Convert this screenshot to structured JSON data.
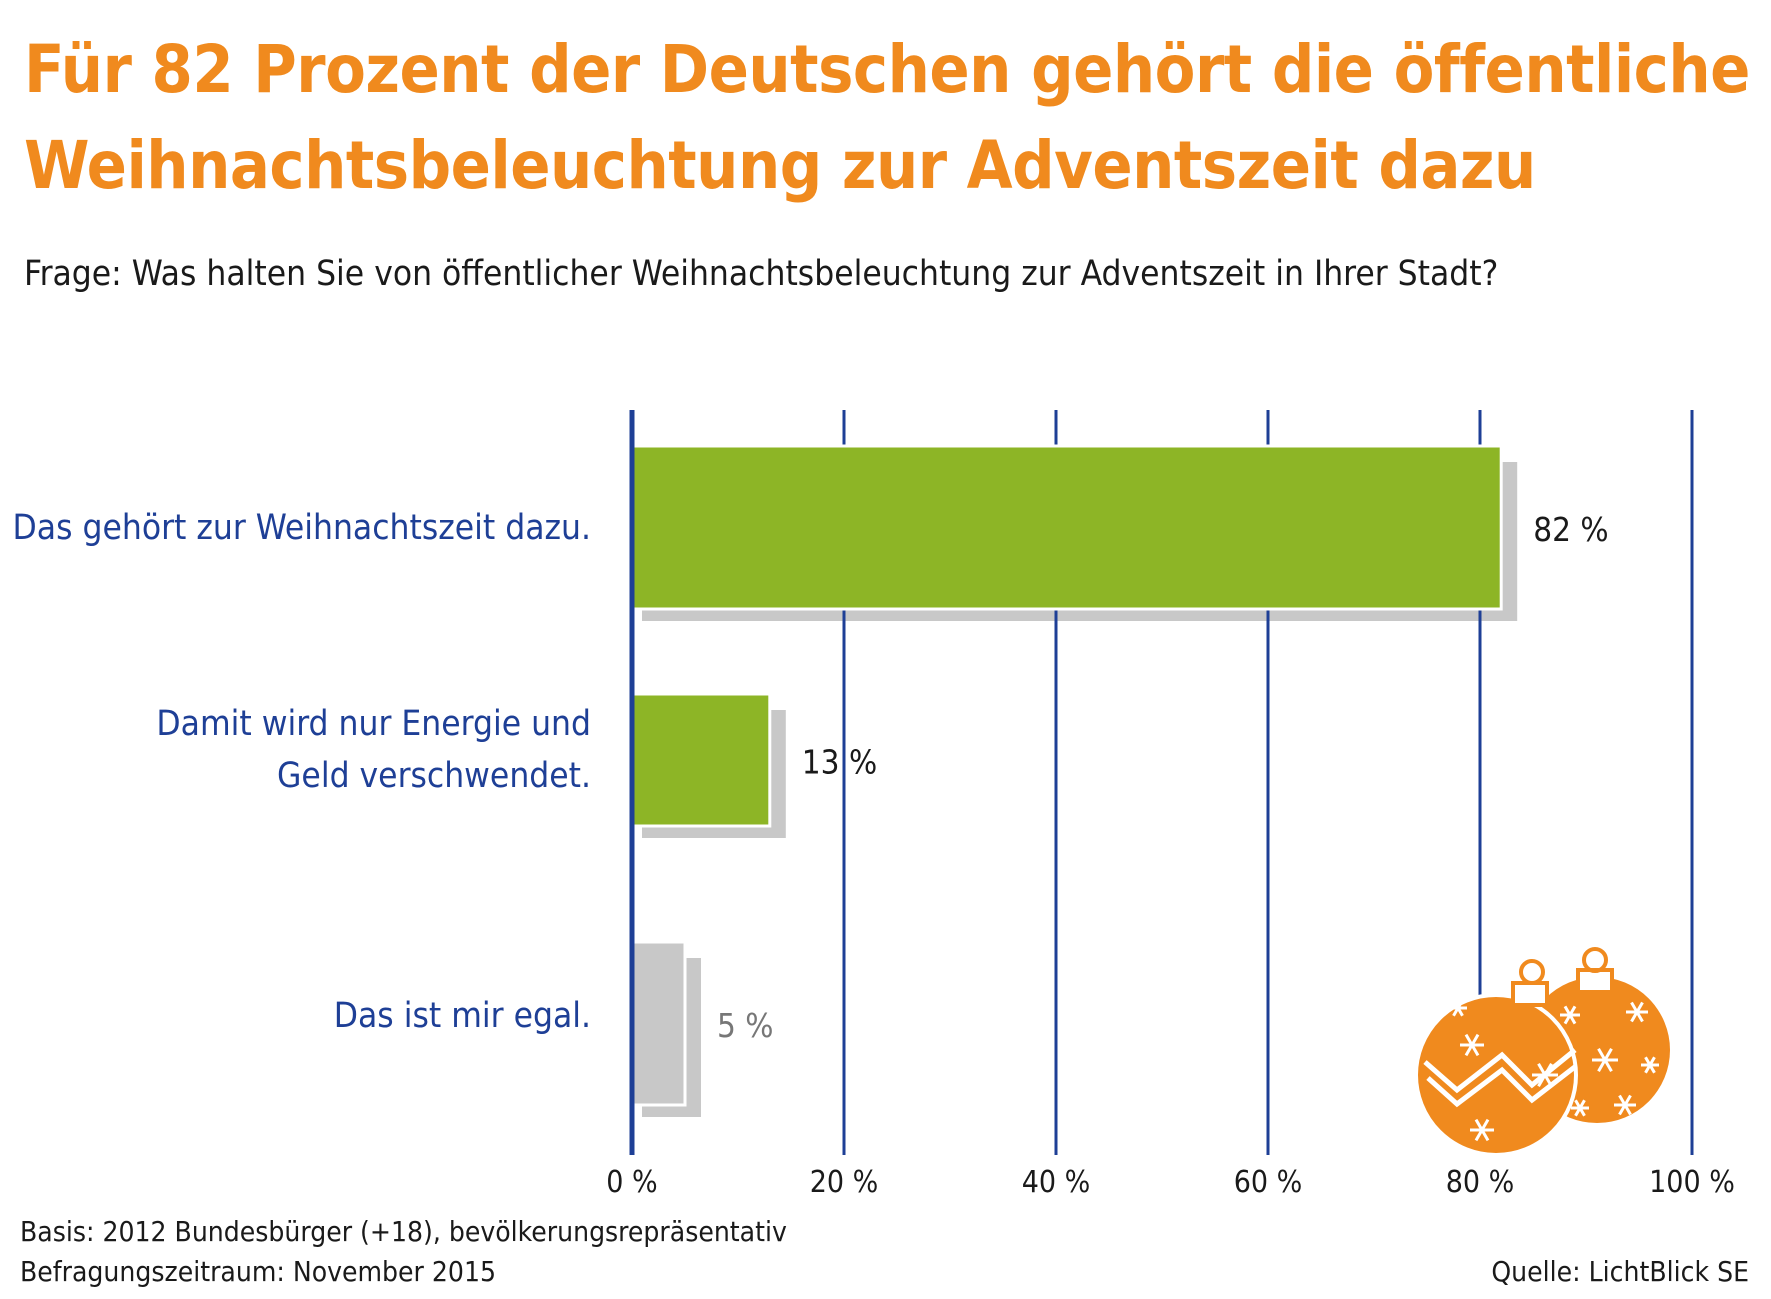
{
  "title_line1": "Für 82 Prozent der Deutschen gehört die öffentliche",
  "title_line2": "Weihnachtsbeleuchtung zur Adventszeit dazu",
  "question": "Frage: Was halten Sie von öffentlicher Weihnachtsbeleuchtung zur Adventszeit in Ihrer Stadt?",
  "footnote": {
    "basis": "Basis: 2012 Bundesbürger (+18), bevölkerungsrepräsentativ",
    "period": "Befragungszeitraum: November 2015",
    "source": "Quelle: LichtBlick SE"
  },
  "colors": {
    "title": "#F08A1E",
    "label": "#1E3F96",
    "axis": "#1E3F96",
    "bar_green": "#8DB526",
    "bar_gray": "#C8C8C8",
    "shadow": "#C8C8C8",
    "ornament": "#F08A1E"
  },
  "decoration": "christmas-ornaments-icon",
  "chart_data": {
    "type": "bar",
    "orientation": "horizontal",
    "categories": [
      "Das gehört zur Weihnachtszeit dazu.",
      "Damit wird nur Energie und|Geld verschwendet.",
      "Das ist mir egal."
    ],
    "values": [
      82,
      13,
      5
    ],
    "value_labels": [
      "82 %",
      "13 %",
      "5 %"
    ],
    "bar_colors": [
      "#8DB526",
      "#8DB526",
      "#C8C8C8"
    ],
    "xlim": [
      0,
      100
    ],
    "xticks": [
      0,
      20,
      40,
      60,
      80,
      100
    ],
    "xtick_labels": [
      "0 %",
      "20 %",
      "40 %",
      "60 %",
      "80 %",
      "100 %"
    ],
    "grid": true
  }
}
